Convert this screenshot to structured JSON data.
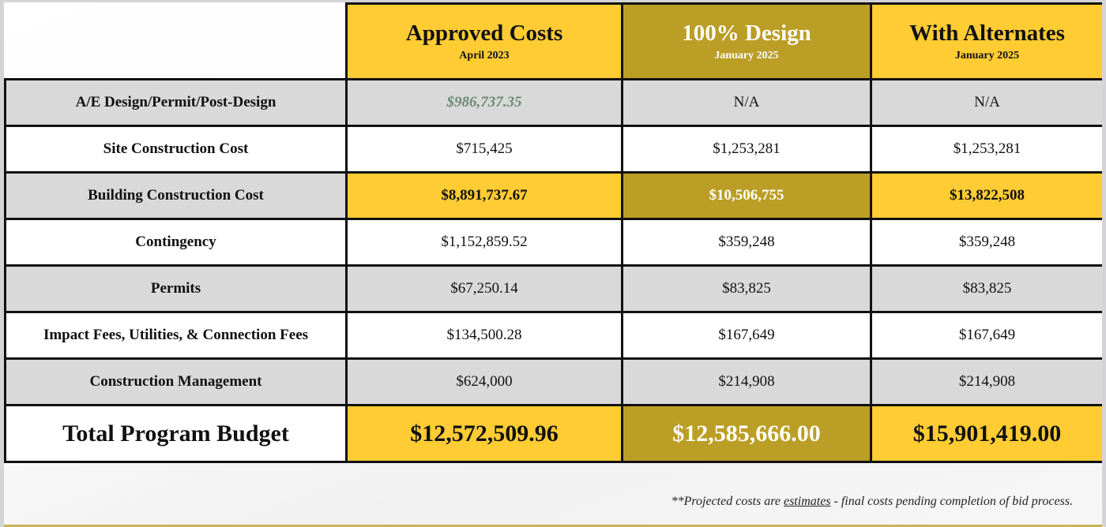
{
  "columns": [
    {
      "title": "Approved Costs",
      "subtitle": "April 2023"
    },
    {
      "title": "100% Design",
      "subtitle": "January 2025"
    },
    {
      "title": "With Alternates",
      "subtitle": "January 2025"
    }
  ],
  "rows": [
    {
      "label": "A/E Design/Permit/Post-Design",
      "values": [
        "$986,737.35",
        "N/A",
        "N/A"
      ]
    },
    {
      "label": "Site Construction Cost",
      "values": [
        "$715,425",
        "$1,253,281",
        "$1,253,281"
      ]
    },
    {
      "label": "Building Construction Cost",
      "values": [
        "$8,891,737.67",
        "$10,506,755",
        "$13,822,508"
      ]
    },
    {
      "label": "Contingency",
      "values": [
        "$1,152,859.52",
        "$359,248",
        "$359,248"
      ]
    },
    {
      "label": "Permits",
      "values": [
        "$67,250.14",
        "$83,825",
        "$83,825"
      ]
    },
    {
      "label": "Impact Fees, Utilities, & Connection Fees",
      "values": [
        "$134,500.28",
        "$167,649",
        "$167,649"
      ]
    },
    {
      "label": "Construction Management",
      "values": [
        "$624,000",
        "$214,908",
        "$214,908"
      ]
    }
  ],
  "total": {
    "label": "Total Program Budget",
    "values": [
      "$12,572,509.96",
      "$12,585,666.00",
      "$15,901,419.00"
    ]
  },
  "footnote": {
    "before": "**Projected costs are ",
    "underlined": "estimates",
    "after": " - final costs pending completion of bid process."
  },
  "colors": {
    "yellow": "#ffcc33",
    "gold": "#bb9e25",
    "gray": "#d9d9d9",
    "green_text": "#6b8a72"
  }
}
